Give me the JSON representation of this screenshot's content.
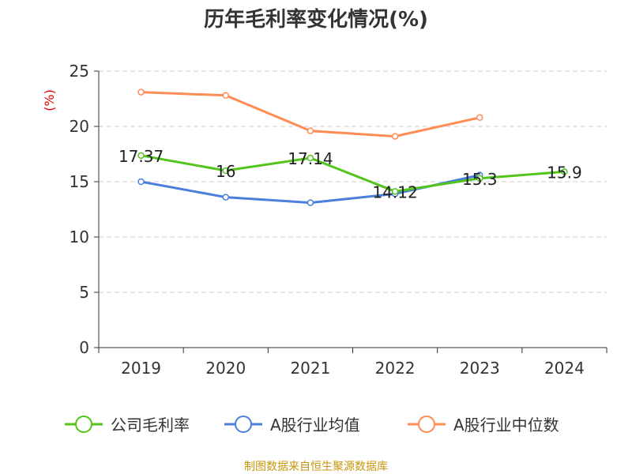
{
  "chart_data": {
    "type": "line",
    "title": "历年毛利率变化情况(%)",
    "ylabel": "(%)",
    "xlabel": "",
    "categories": [
      "2019",
      "2020",
      "2021",
      "2022",
      "2023",
      "2024"
    ],
    "ylim": [
      0,
      25
    ],
    "yticks": [
      "0",
      "5",
      "10",
      "15",
      "20",
      "25"
    ],
    "grid": true,
    "legend_position": "bottom",
    "series": [
      {
        "name": "公司毛利率",
        "color": "#52c41a",
        "values": [
          17.37,
          16,
          17.14,
          14.12,
          15.3,
          15.9
        ],
        "labels": [
          "17.37",
          "16",
          "17.14",
          "14.12",
          "15.3",
          "15.9"
        ]
      },
      {
        "name": "A股行业均值",
        "color": "#4a80dc",
        "values": [
          15.0,
          13.6,
          13.1,
          13.9,
          15.6,
          null
        ]
      },
      {
        "name": "A股行业中位数",
        "color": "#ff8c55",
        "values": [
          23.1,
          22.8,
          19.6,
          19.1,
          20.8,
          null
        ]
      }
    ]
  },
  "source": "制图数据来自恒生聚源数据库"
}
